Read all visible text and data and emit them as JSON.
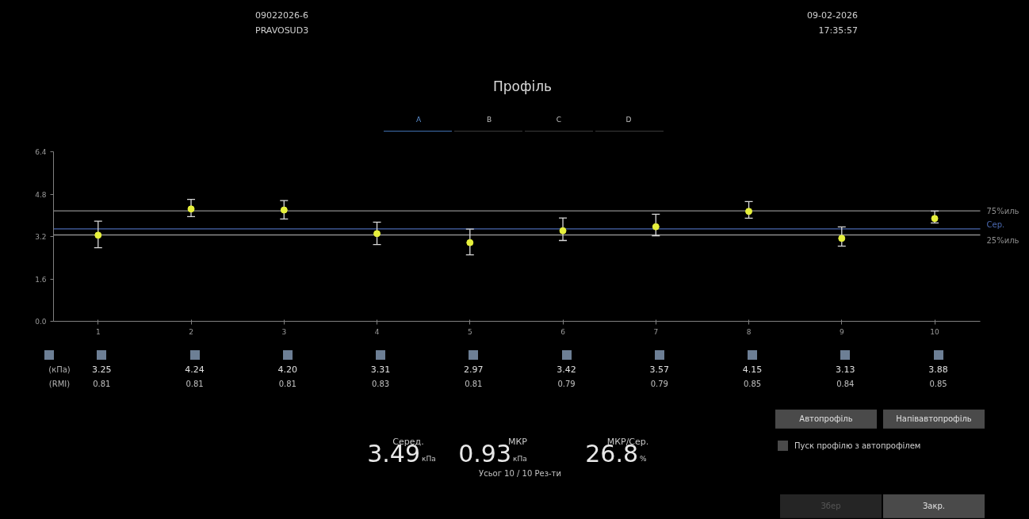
{
  "chart_data": {
    "type": "scatter",
    "title": "Профіль",
    "categories": [
      "1",
      "2",
      "3",
      "4",
      "5",
      "6",
      "7",
      "8",
      "9",
      "10"
    ],
    "series": [
      {
        "color": "#e6f03c",
        "values": [
          3.25,
          4.24,
          4.2,
          3.31,
          2.97,
          3.42,
          3.57,
          4.15,
          3.13,
          3.88
        ],
        "value_labels": [
          "3.25",
          "4.24",
          "4.20",
          "3.31",
          "2.97",
          "3.42",
          "3.57",
          "4.15",
          "3.13",
          "3.88"
        ],
        "errors": [
          [
            2.78,
            3.78
          ],
          [
            3.95,
            4.6
          ],
          [
            3.86,
            4.56
          ],
          [
            2.9,
            3.74
          ],
          [
            2.51,
            3.48
          ],
          [
            3.05,
            3.9
          ],
          [
            3.23,
            4.04
          ],
          [
            3.89,
            4.52
          ],
          [
            2.84,
            3.56
          ],
          [
            3.71,
            4.16
          ]
        ]
      }
    ],
    "ylim": [
      0,
      6.4
    ],
    "yticks": [
      {
        "value": 0,
        "label": "0.0"
      },
      1.6,
      3.2,
      4.8,
      6.4
    ],
    "marker": "circle",
    "grid": false,
    "ref_lines": [
      {
        "axis": "y",
        "value": 4.17,
        "label": "75%иль",
        "color": "#8c8c8c"
      },
      {
        "axis": "y",
        "value": 3.49,
        "label": "Сер.",
        "color": "#4a68b0"
      },
      {
        "axis": "y",
        "value": 3.26,
        "label": "25%иль",
        "color": "#8c8c8c"
      }
    ],
    "annotations": [
      "09022026-6",
      "PRAVOSUD3",
      "09-02-2026",
      "17:35:57",
      "A",
      "B",
      "C",
      "D",
      "(кПа)",
      "(RMI)",
      "0.81",
      "0.81",
      "0.81",
      "0.83",
      "0.81",
      "0.79",
      "0.79",
      "0.85",
      "0.84",
      "0.85",
      "Серед.",
      "3.49",
      "кПа",
      "МКР",
      "0.93",
      "кПа",
      "МКР/Сер.",
      "26.8",
      "%",
      "Усьог 10 / 10 Рез-ти",
      "Автопрофіль",
      "Напівавтопрофіль",
      "Пуск профілю з автопрофілем",
      "Збер",
      "Закр."
    ]
  }
}
